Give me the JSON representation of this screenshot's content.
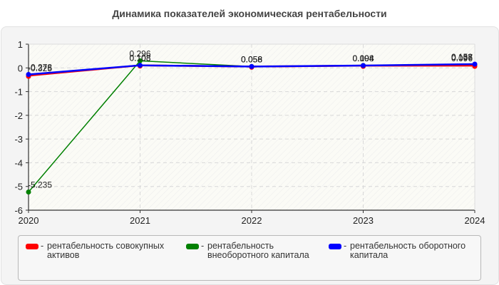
{
  "title": "Динамика показателей экономическая рентабельности",
  "chart_data": {
    "type": "line",
    "title": "Динамика показателей экономическая рентабельности",
    "x": [
      "2020",
      "2021",
      "2022",
      "2023",
      "2024"
    ],
    "ylim": [
      -6,
      1
    ],
    "yticks": [
      "1",
      "0",
      "-1",
      "-2",
      "-3",
      "-4",
      "-5",
      "-6"
    ],
    "grid": true,
    "legend_position": "bottom",
    "series": [
      {
        "name": "рентабельность совокупных активов",
        "color": "#ff0000",
        "values": [
          -0.325,
          0.108,
          0.056,
          0.094,
          0.096
        ]
      },
      {
        "name": "рентабельность внеоборотного капитала",
        "color": "#008000",
        "values": [
          -5.235,
          0.296,
          0.058,
          0.104,
          0.137
        ]
      },
      {
        "name": "рентабельность оборотного капитала",
        "color": "#0000ff",
        "values": [
          -0.278,
          0.108,
          0.058,
          0.098,
          0.158
        ]
      }
    ]
  },
  "legend": [
    {
      "label": "рентабельность совокупных активов",
      "color": "#ff0000"
    },
    {
      "label": "рентабельность внеоборотного капитала",
      "color": "#008000"
    },
    {
      "label": "рентабельность оборотного капитала",
      "color": "#0000ff"
    }
  ],
  "legend_separator": "-"
}
